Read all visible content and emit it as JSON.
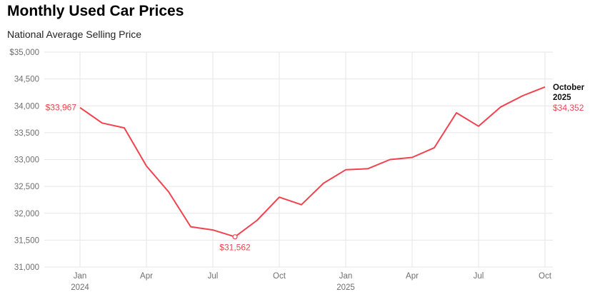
{
  "title": "Monthly Used Car Prices",
  "subtitle": "National Average Selling Price",
  "colors": {
    "line": "#f0434f",
    "grid": "#e6e6e6",
    "axis_text": "#6e6e6e",
    "annotation_label": "#111111"
  },
  "chart_data": {
    "type": "line",
    "title": "Monthly Used Car Prices",
    "subtitle": "National Average Selling Price",
    "xlabel": "",
    "ylabel": "",
    "x": [
      "2024-01",
      "2024-02",
      "2024-03",
      "2024-04",
      "2024-05",
      "2024-06",
      "2024-07",
      "2024-08",
      "2024-09",
      "2024-10",
      "2024-11",
      "2024-12",
      "2025-01",
      "2025-02",
      "2025-03",
      "2025-04",
      "2025-05",
      "2025-06",
      "2025-07",
      "2025-08",
      "2025-09",
      "2025-10"
    ],
    "series": [
      {
        "name": "",
        "values": [
          33967,
          33680,
          33590,
          32880,
          32400,
          31750,
          31690,
          31562,
          31870,
          32300,
          32160,
          32560,
          32810,
          32830,
          33000,
          33040,
          33220,
          33870,
          33620,
          33980,
          34190,
          34352
        ]
      }
    ],
    "ylim": [
      31000,
      35000
    ],
    "yticks": [
      31000,
      31500,
      32000,
      32500,
      33000,
      33500,
      34000,
      34500,
      35000
    ],
    "ytick_labels": [
      "31,000",
      "31,500",
      "32,000",
      "32,500",
      "33,000",
      "33,500",
      "34,000",
      "34,500",
      "$35,000"
    ],
    "xticks": [
      {
        "x": "2024-01",
        "label": "Jan",
        "sublabel": "2024"
      },
      {
        "x": "2024-04",
        "label": "Apr",
        "sublabel": ""
      },
      {
        "x": "2024-07",
        "label": "Jul",
        "sublabel": ""
      },
      {
        "x": "2024-10",
        "label": "Oct",
        "sublabel": ""
      },
      {
        "x": "2025-01",
        "label": "Jan",
        "sublabel": "2025"
      },
      {
        "x": "2025-04",
        "label": "Apr",
        "sublabel": ""
      },
      {
        "x": "2025-07",
        "label": "Jul",
        "sublabel": ""
      },
      {
        "x": "2025-10",
        "label": "Oct",
        "sublabel": ""
      }
    ],
    "annotations": [
      {
        "x": "2024-01",
        "value_label": "$33,967",
        "placement": "left"
      },
      {
        "x": "2024-08",
        "value_label": "$31,562",
        "placement": "below",
        "marker": true
      },
      {
        "x": "2025-10",
        "label_line1": "October",
        "label_line2": "2025",
        "value_label": "$34,352",
        "placement": "right"
      }
    ],
    "grid": true,
    "legend": "none"
  }
}
